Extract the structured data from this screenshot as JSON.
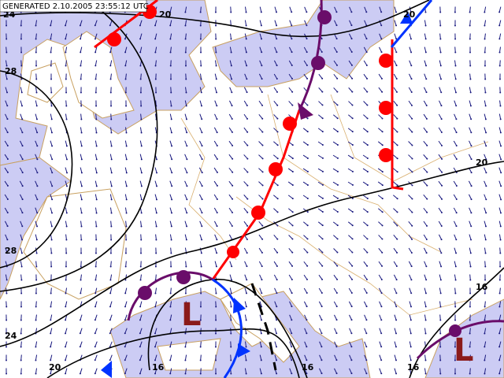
{
  "header": {
    "generated": "GENERATED 2.10.2005 23:55:12 UTC"
  },
  "isobar_labels": [
    "24",
    "20",
    "28",
    "28",
    "24",
    "20",
    "16",
    "16",
    "16",
    "16",
    "20",
    "20"
  ],
  "pressure_centers": [
    "L",
    "L"
  ]
}
